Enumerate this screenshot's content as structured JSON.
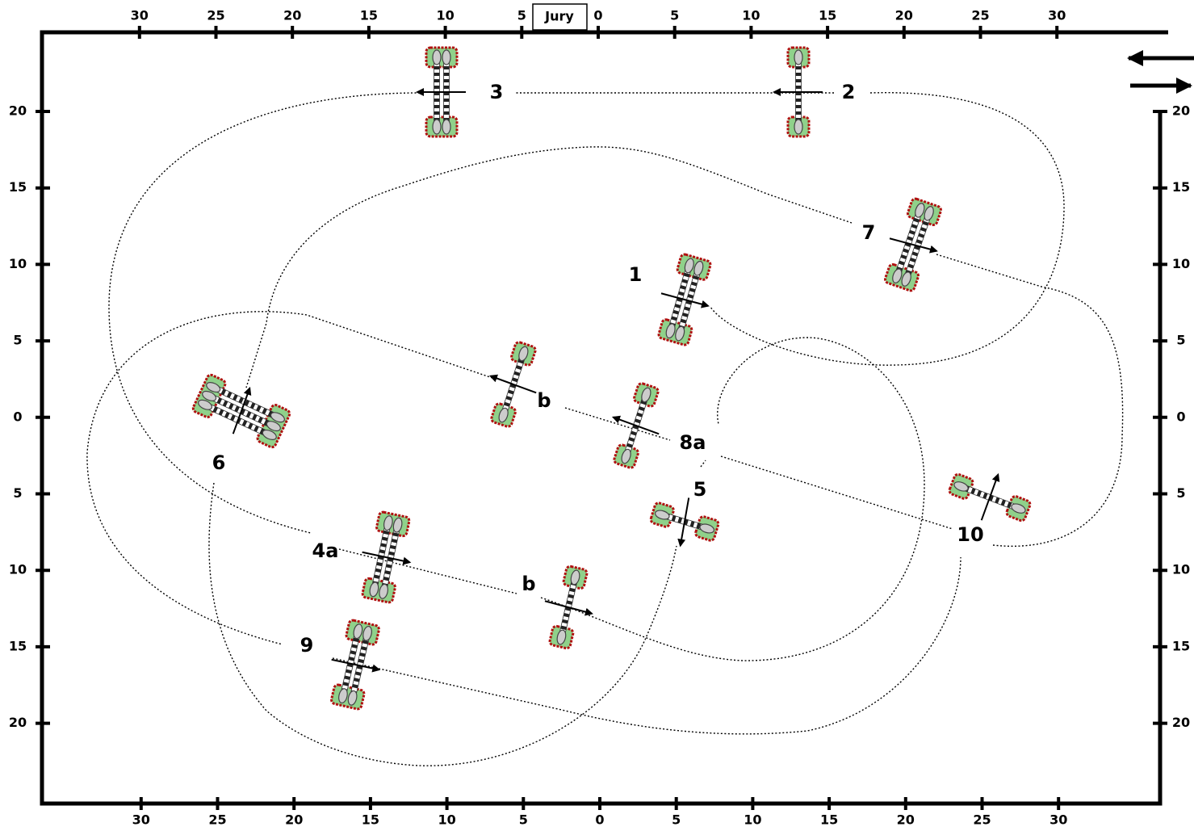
{
  "jury": "Jury",
  "top_scale": [
    30,
    25,
    20,
    15,
    10,
    5,
    0,
    5,
    10,
    15,
    20,
    25,
    30
  ],
  "bottom_scale": [
    30,
    25,
    20,
    15,
    10,
    5,
    0,
    5,
    10,
    15,
    20,
    25,
    30
  ],
  "left_scale": [
    20,
    15,
    10,
    5,
    0,
    5,
    10,
    15,
    20
  ],
  "right_scale": [
    20,
    15,
    10,
    5,
    0,
    5,
    10,
    15,
    20
  ],
  "obstacles": [
    {
      "label": "3"
    },
    {
      "label": "2"
    },
    {
      "label": "7"
    },
    {
      "label": "1"
    },
    {
      "label": "b"
    },
    {
      "label": "8a"
    },
    {
      "label": "5"
    },
    {
      "label": "6"
    },
    {
      "label": "10"
    },
    {
      "label": "4a"
    },
    {
      "label": "b"
    },
    {
      "label": "9"
    }
  ]
}
